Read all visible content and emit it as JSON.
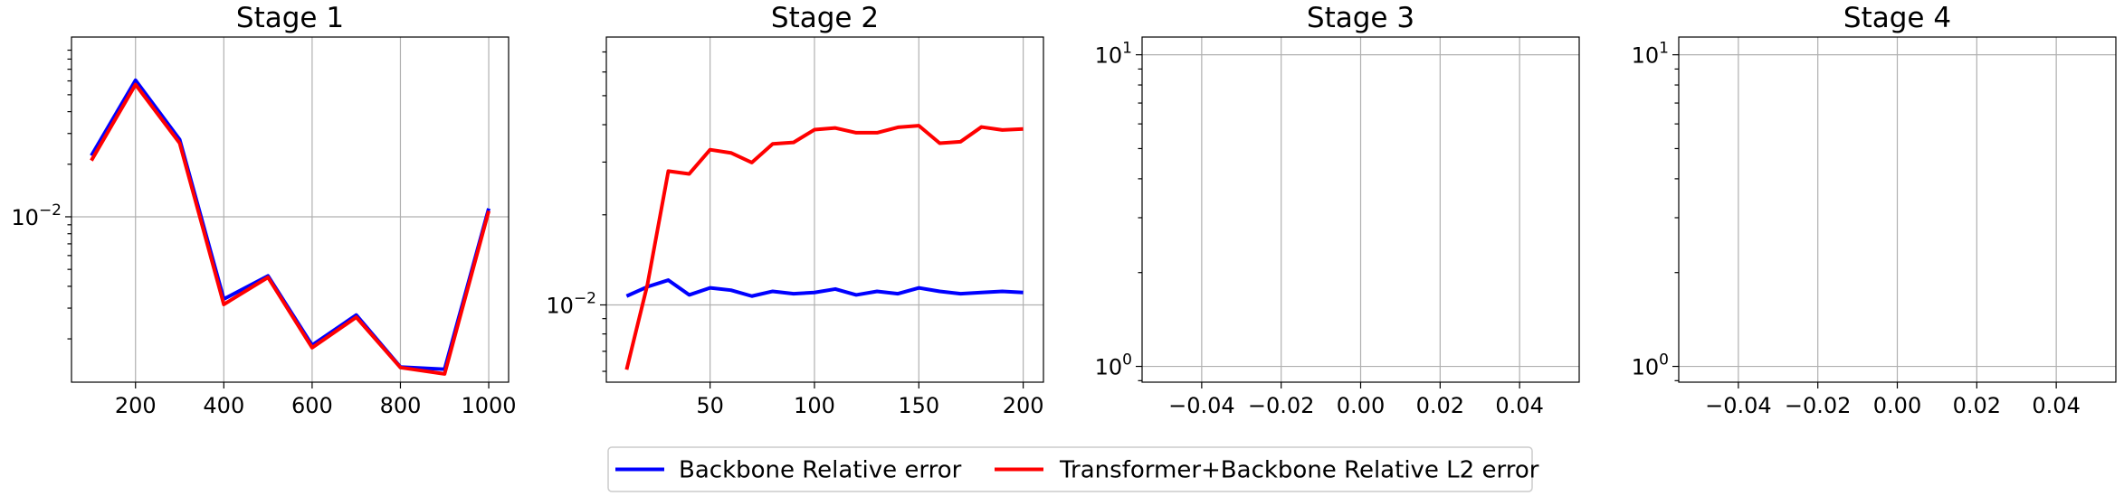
{
  "legend": [
    {
      "label": "Backbone Relative error",
      "color": "#0000ff"
    },
    {
      "label": "Transformer+Backbone Relative L2 error",
      "color": "#ff0000"
    }
  ],
  "chart_data": [
    {
      "type": "line",
      "title": "Stage 1",
      "yscale": "log",
      "xlim": [
        55,
        1045
      ],
      "ylim": [
        0.00113,
        0.107
      ],
      "xticks": [
        200,
        400,
        600,
        800,
        1000
      ],
      "xtick_labels": [
        "200",
        "400",
        "600",
        "800",
        "1000"
      ],
      "yticks": [
        0.01
      ],
      "ytick_labels": [
        [
          "10",
          "−2"
        ]
      ],
      "grid": true,
      "series": [
        {
          "name": "Backbone Relative error",
          "color": "#0000ff",
          "x": [
            100,
            200,
            300,
            400,
            500,
            600,
            700,
            800,
            900,
            1000
          ],
          "y": [
            0.0224,
            0.0605,
            0.0277,
            0.00338,
            0.00459,
            0.00184,
            0.00274,
            0.00138,
            0.00134,
            0.01116
          ]
        },
        {
          "name": "Transformer+Backbone Relative L2 error",
          "color": "#ff0000",
          "x": [
            100,
            200,
            300,
            400,
            500,
            600,
            700,
            800,
            900,
            1000
          ],
          "y": [
            0.021,
            0.0572,
            0.0264,
            0.00315,
            0.0045,
            0.00178,
            0.00266,
            0.00137,
            0.00126,
            0.0108
          ]
        }
      ]
    },
    {
      "type": "line",
      "title": "Stage 2",
      "yscale": "log",
      "xlim": [
        0.3,
        209.7
      ],
      "ylim": [
        0.00552,
        0.0785
      ],
      "xticks": [
        50,
        100,
        150,
        200
      ],
      "xtick_labels": [
        "50",
        "100",
        "150",
        "200"
      ],
      "yticks": [
        0.01
      ],
      "ytick_labels": [
        [
          "10",
          "−2"
        ]
      ],
      "grid": true,
      "series": [
        {
          "name": "Backbone Relative error",
          "color": "#0000ff",
          "x": [
            10,
            20,
            30,
            40,
            50,
            60,
            70,
            80,
            90,
            100,
            110,
            120,
            130,
            140,
            150,
            160,
            170,
            180,
            190,
            200
          ],
          "y": [
            0.0107,
            0.0115,
            0.0121,
            0.0108,
            0.0114,
            0.0112,
            0.0107,
            0.0111,
            0.0109,
            0.011,
            0.0113,
            0.0108,
            0.0111,
            0.0109,
            0.0114,
            0.0111,
            0.0109,
            0.011,
            0.0111,
            0.011
          ]
        },
        {
          "name": "Transformer+Backbone Relative L2 error",
          "color": "#ff0000",
          "x": [
            10,
            20,
            30,
            40,
            50,
            60,
            70,
            80,
            90,
            100,
            110,
            120,
            130,
            140,
            150,
            160,
            170,
            180,
            190,
            200
          ],
          "y": [
            0.00608,
            0.0117,
            0.028,
            0.0274,
            0.033,
            0.0322,
            0.0299,
            0.0345,
            0.0349,
            0.0385,
            0.039,
            0.0376,
            0.0376,
            0.0392,
            0.0397,
            0.0347,
            0.0351,
            0.0393,
            0.0384,
            0.0387
          ]
        }
      ]
    },
    {
      "type": "line",
      "title": "Stage 3",
      "yscale": "log",
      "xlim": [
        -0.055,
        0.055
      ],
      "ylim": [
        0.89,
        11.4
      ],
      "xticks": [
        -0.04,
        -0.02,
        0,
        0.02,
        0.04
      ],
      "xtick_labels": [
        "−0.04",
        "−0.02",
        "0.00",
        "0.02",
        "0.04"
      ],
      "yticks": [
        1,
        10
      ],
      "ytick_labels": [
        [
          "10",
          "0"
        ],
        [
          "10",
          "1"
        ]
      ],
      "grid": true,
      "series": []
    },
    {
      "type": "line",
      "title": "Stage 4",
      "yscale": "log",
      "xlim": [
        -0.055,
        0.055
      ],
      "ylim": [
        0.89,
        11.4
      ],
      "xticks": [
        -0.04,
        -0.02,
        0,
        0.02,
        0.04
      ],
      "xtick_labels": [
        "−0.04",
        "−0.02",
        "0.00",
        "0.02",
        "0.04"
      ],
      "yticks": [
        1,
        10
      ],
      "ytick_labels": [
        [
          "10",
          "0"
        ],
        [
          "10",
          "1"
        ]
      ],
      "grid": true,
      "series": []
    }
  ]
}
